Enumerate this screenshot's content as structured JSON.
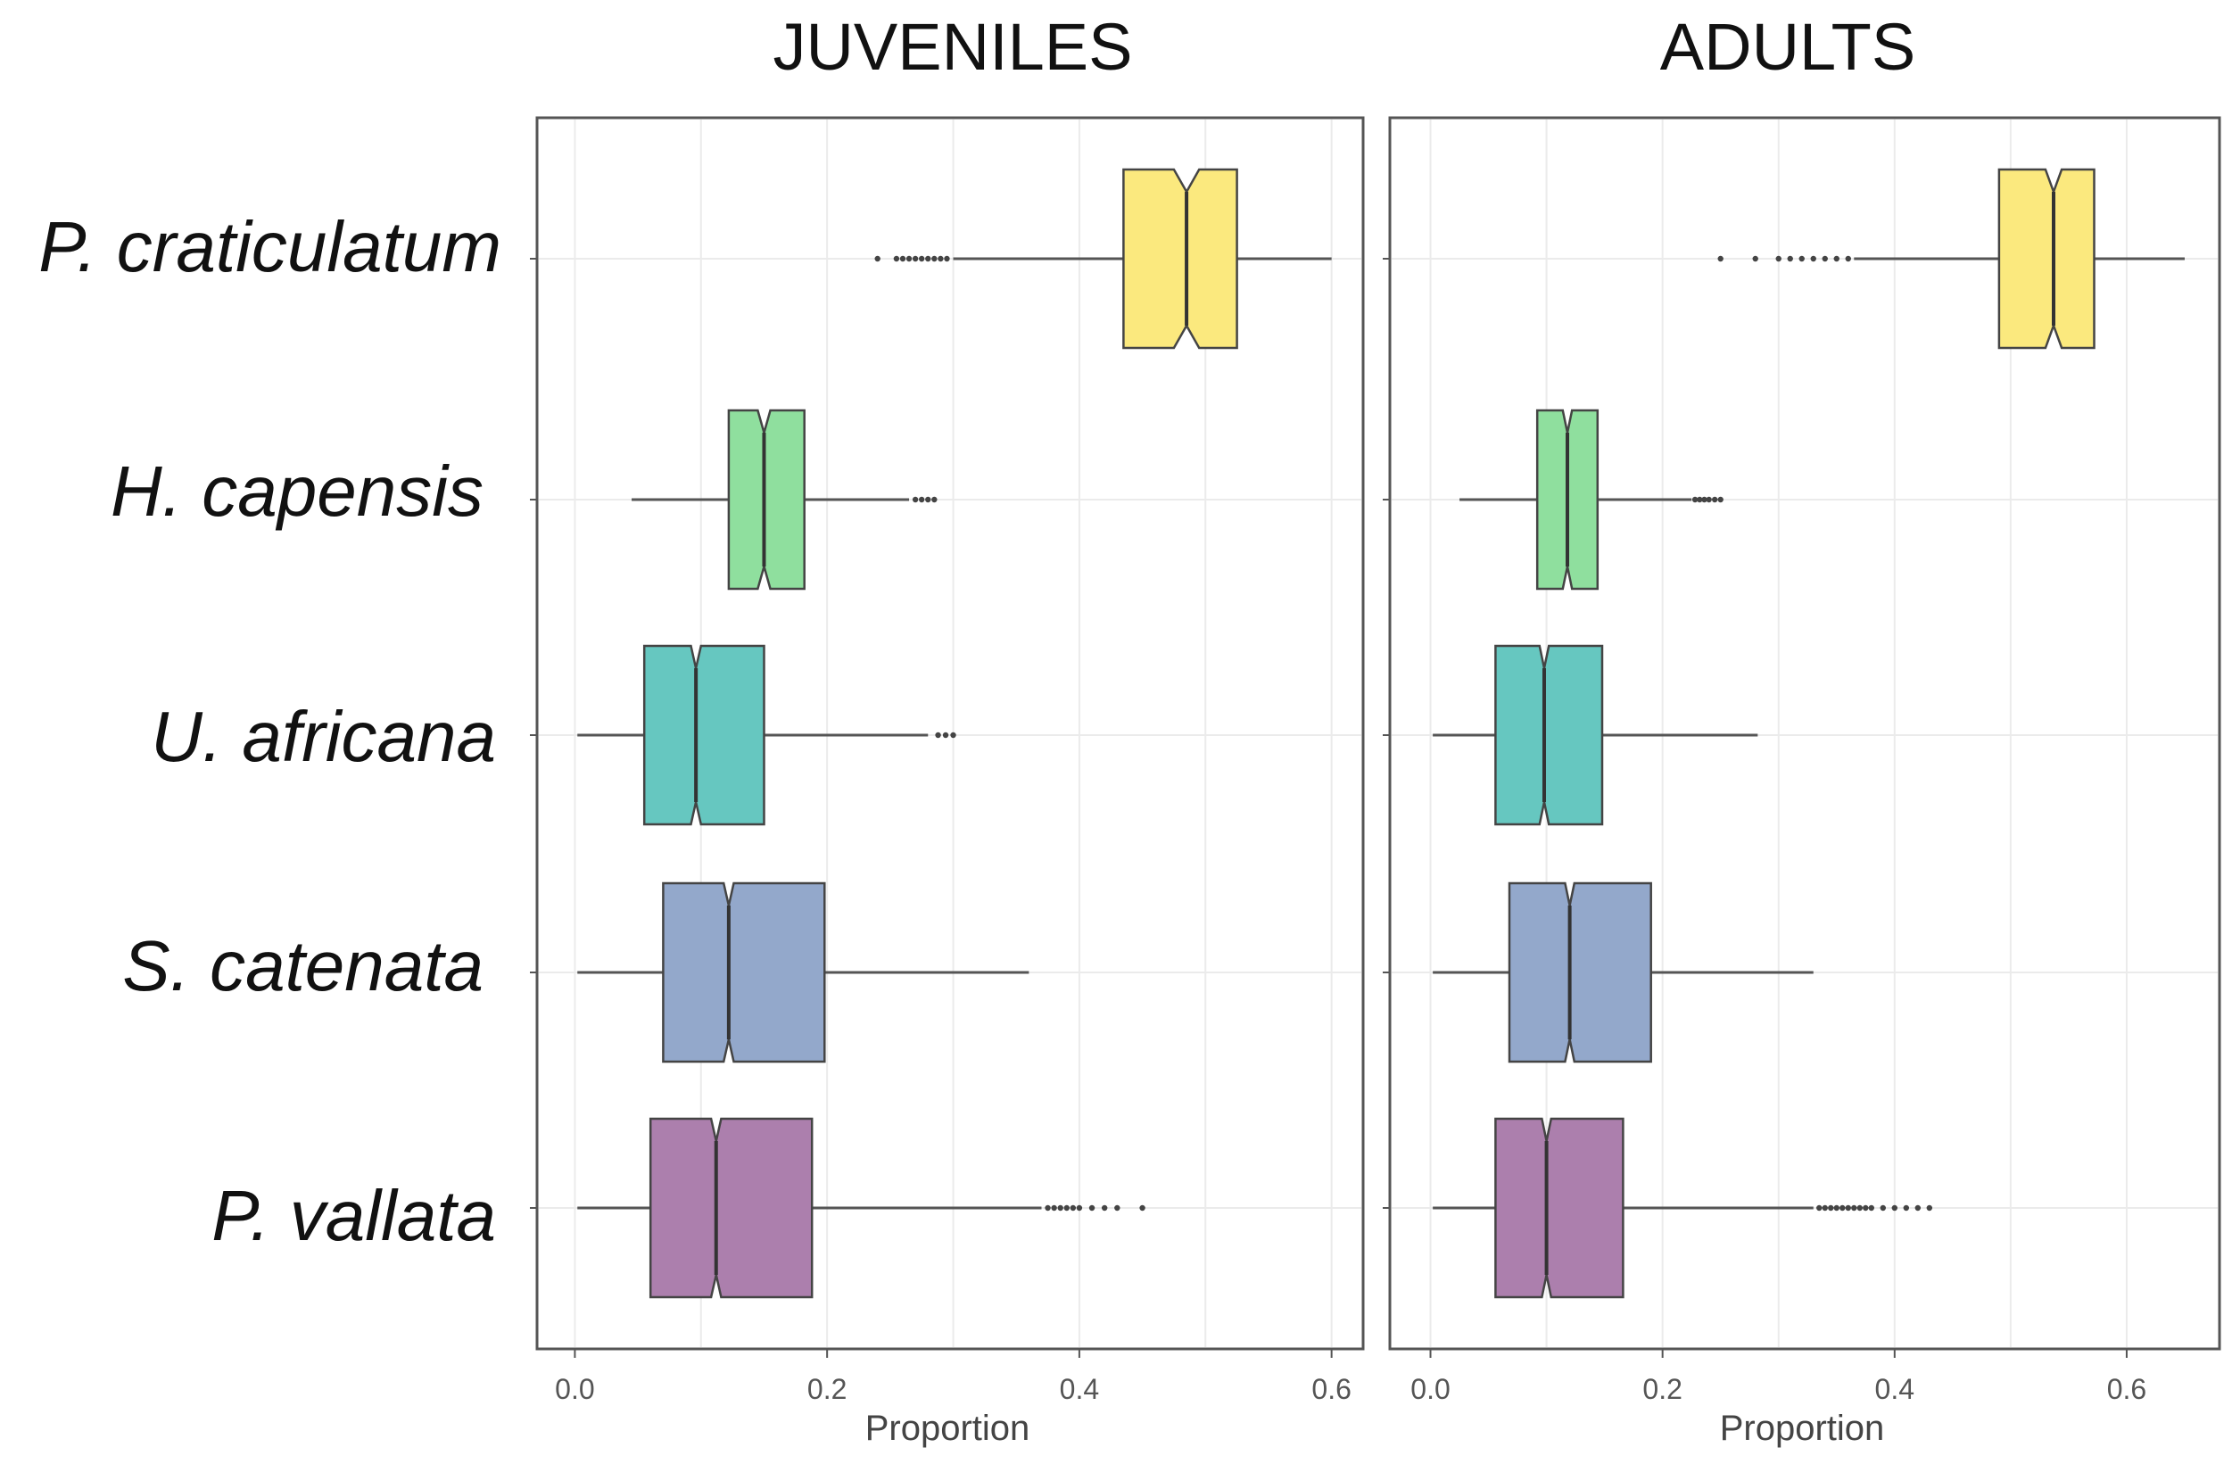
{
  "chart_data": {
    "type": "boxplot",
    "orientation": "horizontal",
    "notched": true,
    "xlabel": "Proportion",
    "xticks": [
      0.0,
      0.2,
      0.4,
      0.6
    ],
    "xtick_labels": [
      "0.0",
      "0.2",
      "0.4",
      "0.6"
    ],
    "categories": [
      "P. craticulatum",
      "H. capensis",
      "U. africana",
      "S. catenata",
      "P. vallata"
    ],
    "colors": {
      "P. craticulatum": "#fbe97e",
      "H. capensis": "#8fdf9e",
      "U. africana": "#66c7c0",
      "S. catenata": "#93a8cb",
      "P. vallata": "#ac7fad"
    },
    "panels": [
      {
        "title": "JUVENILES",
        "xlim": [
          -0.03,
          0.625
        ],
        "series": [
          {
            "name": "P. craticulatum",
            "whisker_low": 0.3,
            "q1": 0.435,
            "notch_low": 0.475,
            "median": 0.485,
            "notch_high": 0.495,
            "q3": 0.525,
            "whisker_high": 0.6,
            "outliers": [
              0.24,
              0.255,
              0.26,
              0.265,
              0.27,
              0.275,
              0.28,
              0.285,
              0.29,
              0.295
            ]
          },
          {
            "name": "H. capensis",
            "whisker_low": 0.045,
            "q1": 0.122,
            "notch_low": 0.145,
            "median": 0.15,
            "notch_high": 0.155,
            "q3": 0.182,
            "whisker_high": 0.265,
            "outliers": [
              0.27,
              0.275,
              0.28,
              0.285
            ]
          },
          {
            "name": "U. africana",
            "whisker_low": 0.002,
            "q1": 0.055,
            "notch_low": 0.092,
            "median": 0.096,
            "notch_high": 0.1,
            "q3": 0.15,
            "whisker_high": 0.28,
            "outliers": [
              0.288,
              0.294,
              0.3
            ]
          },
          {
            "name": "S. catenata",
            "whisker_low": 0.002,
            "q1": 0.07,
            "notch_low": 0.118,
            "median": 0.122,
            "notch_high": 0.126,
            "q3": 0.198,
            "whisker_high": 0.36,
            "outliers": []
          },
          {
            "name": "P. vallata",
            "whisker_low": 0.002,
            "q1": 0.06,
            "notch_low": 0.108,
            "median": 0.112,
            "notch_high": 0.116,
            "q3": 0.188,
            "whisker_high": 0.37,
            "outliers": [
              0.375,
              0.38,
              0.385,
              0.39,
              0.395,
              0.4,
              0.41,
              0.42,
              0.43,
              0.45
            ]
          }
        ]
      },
      {
        "title": "ADULTS",
        "xlim": [
          -0.035,
          0.68
        ],
        "series": [
          {
            "name": "P. craticulatum",
            "whisker_low": 0.365,
            "q1": 0.49,
            "notch_low": 0.53,
            "median": 0.537,
            "notch_high": 0.544,
            "q3": 0.572,
            "whisker_high": 0.65,
            "outliers": [
              0.25,
              0.28,
              0.3,
              0.31,
              0.32,
              0.33,
              0.34,
              0.35,
              0.36
            ]
          },
          {
            "name": "H. capensis",
            "whisker_low": 0.025,
            "q1": 0.092,
            "notch_low": 0.114,
            "median": 0.118,
            "notch_high": 0.122,
            "q3": 0.144,
            "whisker_high": 0.225,
            "outliers": [
              0.228,
              0.232,
              0.236,
              0.24,
              0.245,
              0.25
            ]
          },
          {
            "name": "U. africana",
            "whisker_low": 0.002,
            "q1": 0.056,
            "notch_low": 0.094,
            "median": 0.098,
            "notch_high": 0.102,
            "q3": 0.148,
            "whisker_high": 0.282,
            "outliers": []
          },
          {
            "name": "S. catenata",
            "whisker_low": 0.002,
            "q1": 0.068,
            "notch_low": 0.116,
            "median": 0.12,
            "notch_high": 0.124,
            "q3": 0.19,
            "whisker_high": 0.33,
            "outliers": []
          },
          {
            "name": "P. vallata",
            "whisker_low": 0.002,
            "q1": 0.056,
            "notch_low": 0.096,
            "median": 0.1,
            "notch_high": 0.104,
            "q3": 0.166,
            "whisker_high": 0.33,
            "outliers": [
              0.335,
              0.34,
              0.345,
              0.35,
              0.355,
              0.36,
              0.365,
              0.37,
              0.375,
              0.38,
              0.39,
              0.4,
              0.41,
              0.42,
              0.43
            ]
          }
        ]
      }
    ]
  }
}
